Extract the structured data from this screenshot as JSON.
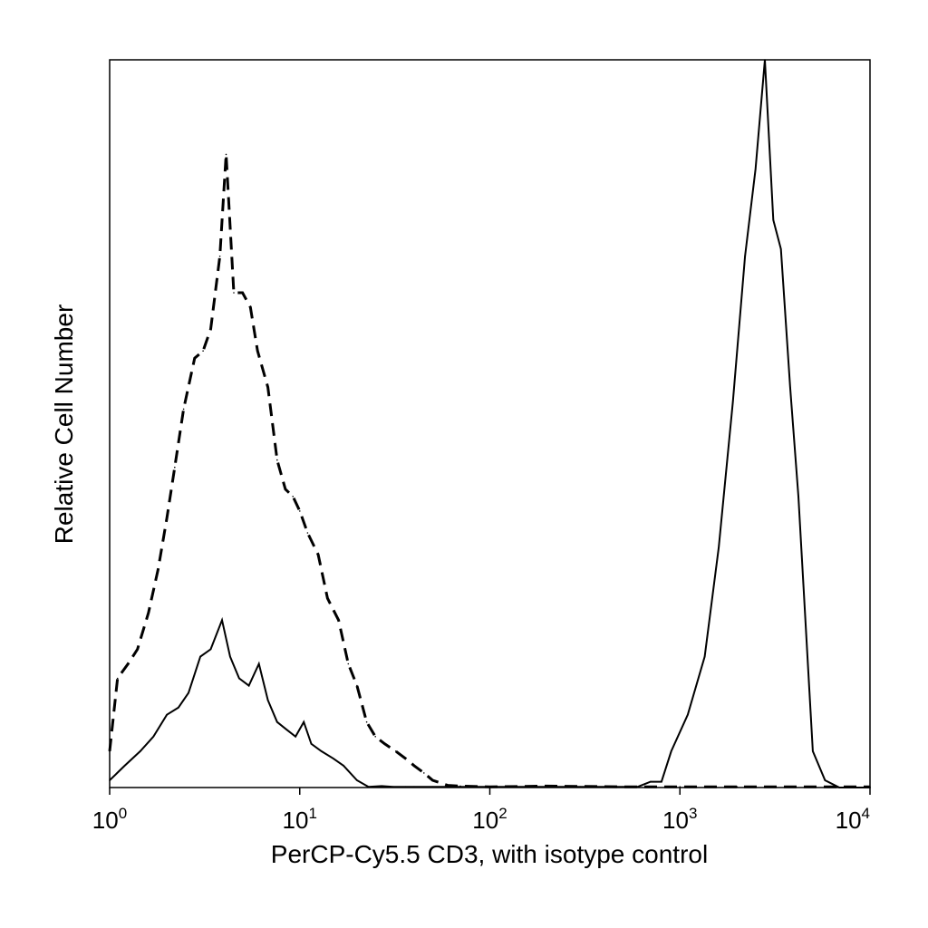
{
  "chart_data": {
    "type": "line",
    "title": "",
    "xlabel": "PerCP-Cy5.5 CD3, with isotype control",
    "ylabel": "Relative Cell Number",
    "x_scale": "log",
    "xlim": [
      1,
      10000
    ],
    "ylim": [
      0,
      1.0
    ],
    "x_ticks": [
      {
        "base": "10",
        "exp": "0",
        "value": 1
      },
      {
        "base": "10",
        "exp": "1",
        "value": 10
      },
      {
        "base": "10",
        "exp": "2",
        "value": 100
      },
      {
        "base": "10",
        "exp": "3",
        "value": 1000
      },
      {
        "base": "10",
        "exp": "4",
        "value": 10000
      }
    ],
    "grid": false,
    "legend": "none",
    "series": [
      {
        "style": "dashed",
        "color": "#000000",
        "x": [
          1.0,
          1.1,
          1.25,
          1.4,
          1.6,
          1.8,
          2.0,
          2.2,
          2.45,
          2.8,
          3.1,
          3.4,
          3.8,
          4.1,
          4.5,
          5.0,
          5.5,
          6.0,
          6.8,
          7.6,
          8.4,
          9.2,
          10.0,
          11.0,
          12.5,
          14.0,
          16.0,
          18.0,
          20.0,
          22.5,
          25.0,
          28.0,
          32.0,
          36.0,
          40.0,
          45.0,
          50.0,
          60.0,
          70.0,
          100.0,
          200.0,
          500.0,
          1000.0,
          2000.0,
          4000.0,
          8000.0,
          10000.0
        ],
        "y": [
          0.05,
          0.15,
          0.17,
          0.19,
          0.24,
          0.3,
          0.37,
          0.44,
          0.52,
          0.59,
          0.6,
          0.63,
          0.73,
          0.87,
          0.68,
          0.68,
          0.66,
          0.6,
          0.55,
          0.45,
          0.41,
          0.4,
          0.38,
          0.35,
          0.32,
          0.26,
          0.23,
          0.17,
          0.14,
          0.09,
          0.07,
          0.06,
          0.05,
          0.04,
          0.03,
          0.02,
          0.01,
          0.003,
          0.002,
          0.001,
          0.002,
          0.001,
          0.001,
          0.001,
          0.001,
          0.001,
          0.001
        ]
      },
      {
        "style": "solid",
        "color": "#000000",
        "x": [
          1.0,
          1.2,
          1.45,
          1.7,
          2.0,
          2.3,
          2.6,
          3.0,
          3.4,
          3.9,
          4.3,
          4.8,
          5.4,
          6.1,
          6.8,
          7.6,
          8.5,
          9.5,
          10.5,
          11.5,
          13.0,
          15.0,
          17.0,
          20.0,
          23.0,
          27.0,
          31.0,
          36.0,
          40.0,
          50.0,
          100.0,
          300.0,
          600.0,
          700.0,
          800.0,
          900.0,
          1100.0,
          1350.0,
          1600.0,
          1900.0,
          2200.0,
          2500.0,
          2800.0,
          3100.0,
          3400.0,
          3800.0,
          4200.0,
          5000.0,
          5800.0,
          6900.0,
          8200.0,
          10000.0
        ],
        "y": [
          0.01,
          0.03,
          0.05,
          0.07,
          0.1,
          0.11,
          0.13,
          0.18,
          0.19,
          0.23,
          0.18,
          0.15,
          0.14,
          0.17,
          0.12,
          0.09,
          0.08,
          0.07,
          0.09,
          0.06,
          0.05,
          0.04,
          0.03,
          0.01,
          0.001,
          0.002,
          0.001,
          0.001,
          0.001,
          0.001,
          0.001,
          0.001,
          0.001,
          0.008,
          0.008,
          0.05,
          0.1,
          0.18,
          0.33,
          0.53,
          0.73,
          0.85,
          1.0,
          0.78,
          0.74,
          0.55,
          0.4,
          0.05,
          0.01,
          0.0,
          0.0,
          0.0
        ]
      }
    ]
  }
}
